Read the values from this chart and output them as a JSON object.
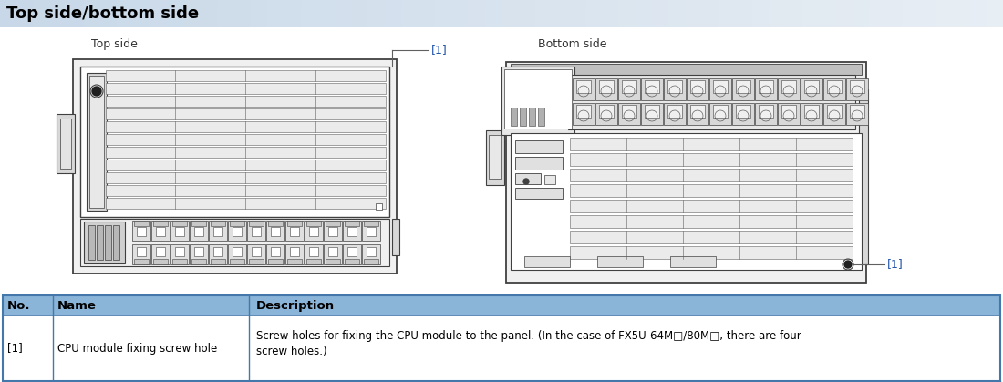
{
  "title": "Top side/bottom side",
  "title_color": "#000000",
  "title_fontsize": 13,
  "bg_color": "#ffffff",
  "top_side_label": "Top side",
  "bottom_side_label": "Bottom side",
  "label_fontsize": 9,
  "annotation_1": "[1]",
  "annotation_color": "#2255aa",
  "table_header_bg": "#8ab4d8",
  "table_border_color": "#4477aa",
  "table_col1_header": "No.",
  "table_col2_header": "Name",
  "table_col3_header": "Description",
  "table_row1_col1": "[1]",
  "table_row1_col2": "CPU module fixing screw hole",
  "table_row1_col3": "Screw holes for fixing the CPU module to the panel. (In the case of FX5U-64M□/80M□, there are four\nscrew holes.)",
  "lc": "#404040",
  "lc2": "#606060",
  "fc_light": "#f4f4f4",
  "fc_mid": "#e0e0e0",
  "fc_dark": "#b8b8b8"
}
